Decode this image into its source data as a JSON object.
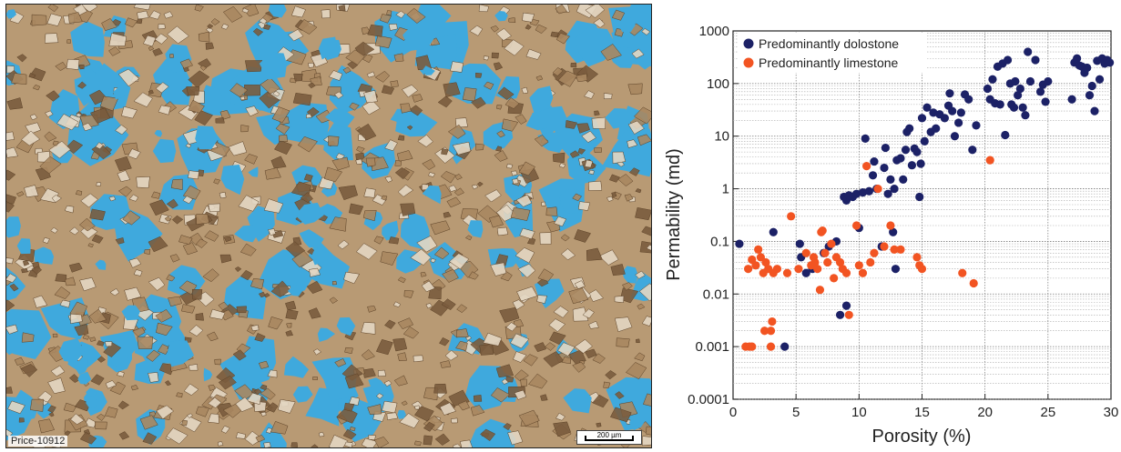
{
  "micrograph": {
    "sample_label": "Price-10912",
    "scale_bar_label": "200 µm",
    "colors": {
      "pore_blue": "#3fa9dd",
      "crystal_tan": "#b89a74",
      "crystal_light": "#e3d6c2",
      "crystal_dark": "#7a5c3e"
    }
  },
  "chart_data": {
    "type": "scatter",
    "xlabel": "Porosity (%)",
    "ylabel": "Permability (md)",
    "xlim": [
      0,
      30
    ],
    "ylim": [
      0.0001,
      1000
    ],
    "yscale": "log",
    "grid": true,
    "legend_position": "top-left",
    "x_ticks": [
      0,
      5,
      10,
      15,
      20,
      25,
      30
    ],
    "y_ticks": [
      "0.0001",
      "0.001",
      "0.01",
      "0.1",
      "1",
      "10",
      "100",
      "1000"
    ],
    "series": [
      {
        "name": "Predominantly dolostone",
        "color": "#1c2166",
        "points": [
          [
            0.5,
            0.09
          ],
          [
            3.2,
            0.15
          ],
          [
            4.1,
            0.001
          ],
          [
            5.3,
            0.09
          ],
          [
            5.4,
            0.05
          ],
          [
            5.8,
            0.025
          ],
          [
            6.3,
            0.03
          ],
          [
            7.2,
            0.06
          ],
          [
            7.6,
            0.08
          ],
          [
            8.2,
            0.1
          ],
          [
            8.5,
            0.004
          ],
          [
            9.0,
            0.006
          ],
          [
            8.8,
            0.7
          ],
          [
            9.0,
            0.6
          ],
          [
            9.2,
            0.75
          ],
          [
            9.5,
            0.7
          ],
          [
            9.8,
            0.8
          ],
          [
            10.0,
            0.18
          ],
          [
            10.3,
            0.85
          ],
          [
            10.5,
            9.0
          ],
          [
            10.8,
            0.9
          ],
          [
            11.1,
            1.8
          ],
          [
            11.2,
            3.3
          ],
          [
            11.4,
            1.0
          ],
          [
            11.8,
            0.08
          ],
          [
            12.0,
            2.5
          ],
          [
            12.1,
            6.0
          ],
          [
            12.3,
            0.8
          ],
          [
            12.5,
            1.5
          ],
          [
            12.7,
            0.15
          ],
          [
            12.8,
            1.0
          ],
          [
            13.0,
            3.5
          ],
          [
            12.9,
            0.03
          ],
          [
            13.3,
            3.8
          ],
          [
            13.5,
            1.5
          ],
          [
            13.7,
            5.5
          ],
          [
            13.8,
            12.0
          ],
          [
            14.0,
            14.0
          ],
          [
            14.2,
            2.8
          ],
          [
            14.4,
            5.8
          ],
          [
            14.6,
            5.0
          ],
          [
            14.8,
            0.7
          ],
          [
            14.9,
            3.0
          ],
          [
            15.0,
            22.0
          ],
          [
            15.2,
            8.0
          ],
          [
            15.4,
            35.0
          ],
          [
            15.7,
            12.0
          ],
          [
            15.9,
            28.0
          ],
          [
            16.1,
            14.0
          ],
          [
            16.4,
            26.0
          ],
          [
            16.8,
            22.0
          ],
          [
            17.1,
            38.0
          ],
          [
            17.2,
            65.0
          ],
          [
            17.4,
            30.0
          ],
          [
            17.6,
            10.0
          ],
          [
            17.9,
            18.0
          ],
          [
            18.1,
            28.0
          ],
          [
            18.4,
            62.0
          ],
          [
            18.7,
            50.0
          ],
          [
            19.0,
            5.5
          ],
          [
            19.3,
            16.0
          ],
          [
            20.2,
            80.0
          ],
          [
            20.4,
            50.0
          ],
          [
            20.6,
            120.0
          ],
          [
            20.8,
            42.0
          ],
          [
            21.0,
            210.0
          ],
          [
            21.2,
            40.0
          ],
          [
            21.4,
            240.0
          ],
          [
            21.6,
            10.5
          ],
          [
            21.8,
            280.0
          ],
          [
            22.0,
            100.0
          ],
          [
            22.1,
            40.0
          ],
          [
            22.3,
            35.0
          ],
          [
            22.4,
            110.0
          ],
          [
            22.6,
            60.0
          ],
          [
            22.8,
            80.0
          ],
          [
            23.0,
            35.0
          ],
          [
            23.2,
            25.0
          ],
          [
            23.4,
            400.0
          ],
          [
            23.6,
            110.0
          ],
          [
            24.0,
            280.0
          ],
          [
            24.4,
            70.0
          ],
          [
            24.6,
            95.0
          ],
          [
            24.8,
            45.0
          ],
          [
            25.0,
            110.0
          ],
          [
            26.9,
            50.0
          ],
          [
            27.1,
            250.0
          ],
          [
            27.3,
            300.0
          ],
          [
            27.5,
            220.0
          ],
          [
            27.7,
            210.0
          ],
          [
            27.9,
            160.0
          ],
          [
            28.1,
            200.0
          ],
          [
            28.3,
            60.0
          ],
          [
            28.5,
            90.0
          ],
          [
            28.7,
            30.0
          ],
          [
            28.9,
            270.0
          ],
          [
            29.1,
            120.0
          ],
          [
            29.3,
            300.0
          ],
          [
            29.5,
            240.0
          ],
          [
            29.7,
            280.0
          ],
          [
            29.9,
            250.0
          ]
        ]
      },
      {
        "name": "Predominantly limestone",
        "color": "#f25422",
        "points": [
          [
            1.0,
            0.001
          ],
          [
            1.3,
            0.001
          ],
          [
            1.5,
            0.001
          ],
          [
            1.2,
            0.03
          ],
          [
            1.5,
            0.045
          ],
          [
            1.8,
            0.035
          ],
          [
            2.0,
            0.07
          ],
          [
            2.2,
            0.05
          ],
          [
            2.4,
            0.025
          ],
          [
            2.5,
            0.002
          ],
          [
            2.6,
            0.04
          ],
          [
            2.8,
            0.03
          ],
          [
            3.0,
            0.001
          ],
          [
            3.0,
            0.002
          ],
          [
            3.1,
            0.003
          ],
          [
            3.2,
            0.025
          ],
          [
            3.5,
            0.03
          ],
          [
            4.3,
            0.025
          ],
          [
            4.6,
            0.3
          ],
          [
            5.2,
            0.03
          ],
          [
            5.8,
            0.06
          ],
          [
            6.2,
            0.035
          ],
          [
            6.4,
            0.05
          ],
          [
            6.5,
            0.04
          ],
          [
            6.7,
            0.03
          ],
          [
            6.9,
            0.012
          ],
          [
            7.0,
            0.15
          ],
          [
            7.1,
            0.16
          ],
          [
            7.3,
            0.06
          ],
          [
            7.5,
            0.04
          ],
          [
            7.8,
            0.09
          ],
          [
            8.0,
            0.02
          ],
          [
            8.2,
            0.05
          ],
          [
            8.5,
            0.04
          ],
          [
            8.7,
            0.03
          ],
          [
            9.0,
            0.025
          ],
          [
            9.2,
            0.004
          ],
          [
            9.8,
            0.2
          ],
          [
            10.0,
            0.035
          ],
          [
            10.3,
            0.025
          ],
          [
            10.6,
            2.7
          ],
          [
            10.9,
            0.04
          ],
          [
            11.2,
            0.06
          ],
          [
            11.5,
            1.0
          ],
          [
            12.0,
            0.08
          ],
          [
            12.5,
            0.2
          ],
          [
            12.8,
            0.07
          ],
          [
            13.3,
            0.07
          ],
          [
            14.6,
            0.05
          ],
          [
            14.8,
            0.035
          ],
          [
            15.0,
            0.03
          ],
          [
            18.2,
            0.025
          ],
          [
            19.1,
            0.016
          ],
          [
            20.4,
            3.5
          ]
        ]
      }
    ]
  }
}
